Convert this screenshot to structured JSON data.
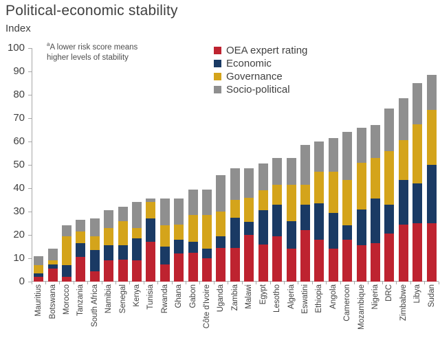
{
  "title": "Political-economic stability",
  "subtitle": "Index",
  "annotation": {
    "superscript": "a",
    "line1": "A lower risk score means",
    "line2": "higher levels of stability"
  },
  "colors": {
    "oea": "#be2330",
    "economic": "#1a3a64",
    "governance": "#d4a41b",
    "socio_political": "#8f8f8f",
    "axis": "#a6a6a6",
    "text": "#404040"
  },
  "chart_data": {
    "type": "bar",
    "stacked": true,
    "title": "Political-economic stability",
    "ylabel": "Index",
    "xlabel": "",
    "ylim": [
      0,
      100
    ],
    "ytick_interval": 10,
    "yticklabels": [
      "0",
      "10",
      "20",
      "30",
      "40",
      "50",
      "60",
      "70",
      "80",
      "90",
      "100"
    ],
    "grid": false,
    "legend_position": "top-right",
    "categories": [
      "Mauritius",
      "Botswana",
      "Morocco",
      "Tanzania",
      "South Africa",
      "Namibia",
      "Senegal",
      "Kenya",
      "Tunisia",
      "Rwanda",
      "Ghana",
      "Gabon",
      "Côte d'Ivoire",
      "Uganda",
      "Zambia",
      "Malawi",
      "Egypt",
      "Lesotho",
      "Algeria",
      "Eswatini",
      "Ethiopia",
      "Angola",
      "Cameroon",
      "Mozambique",
      "Nigeria",
      "DRC",
      "Zimbabwe",
      "Libya",
      "Sudan"
    ],
    "series": [
      {
        "name": "OEA expert rating",
        "color": "#be2330",
        "values": [
          2,
          5.5,
          2,
          10.5,
          4.5,
          9,
          9.5,
          9,
          17,
          7.5,
          12,
          12.5,
          10,
          14.5,
          14.5,
          20,
          16,
          19.5,
          14,
          22,
          18,
          14,
          18,
          15.5,
          16.5,
          20.5,
          24.5,
          25,
          25
        ]
      },
      {
        "name": "Economic",
        "color": "#1a3a64",
        "values": [
          1.5,
          2,
          5,
          6,
          9,
          6.5,
          6,
          9.5,
          10,
          7.5,
          6,
          4.5,
          4,
          5,
          13,
          5.5,
          14.5,
          13.5,
          12,
          11,
          15.5,
          15.5,
          6,
          15.5,
          19,
          12.5,
          19,
          17,
          25
        ]
      },
      {
        "name": "Governance",
        "color": "#d4a41b",
        "values": [
          3.5,
          1.5,
          12.5,
          5,
          6,
          7.5,
          10.5,
          4.5,
          7,
          9,
          6.5,
          11.5,
          14.5,
          10.5,
          7.5,
          10.5,
          8.5,
          8.5,
          15.5,
          8.5,
          13.5,
          17.5,
          19.5,
          20,
          17.5,
          23,
          17,
          25.5,
          23.5
        ]
      },
      {
        "name": "Socio-political",
        "color": "#8f8f8f",
        "values": [
          4,
          5,
          4.5,
          5,
          7.5,
          7.5,
          6,
          11,
          1.5,
          11.5,
          11,
          11,
          11,
          15.5,
          13.5,
          12.5,
          11.5,
          11.5,
          11.5,
          17,
          13,
          14.5,
          20.5,
          15,
          14,
          18,
          18,
          17.5,
          15
        ]
      }
    ],
    "totals": [
      11,
      14,
      24,
      26.5,
      27,
      30.5,
      32,
      34,
      35.5,
      35.5,
      35.5,
      39.5,
      39.5,
      45.5,
      48.5,
      48.5,
      50.5,
      53,
      53,
      58.5,
      60,
      61.5,
      64,
      66,
      67,
      74,
      78.5,
      85,
      88.5
    ]
  }
}
